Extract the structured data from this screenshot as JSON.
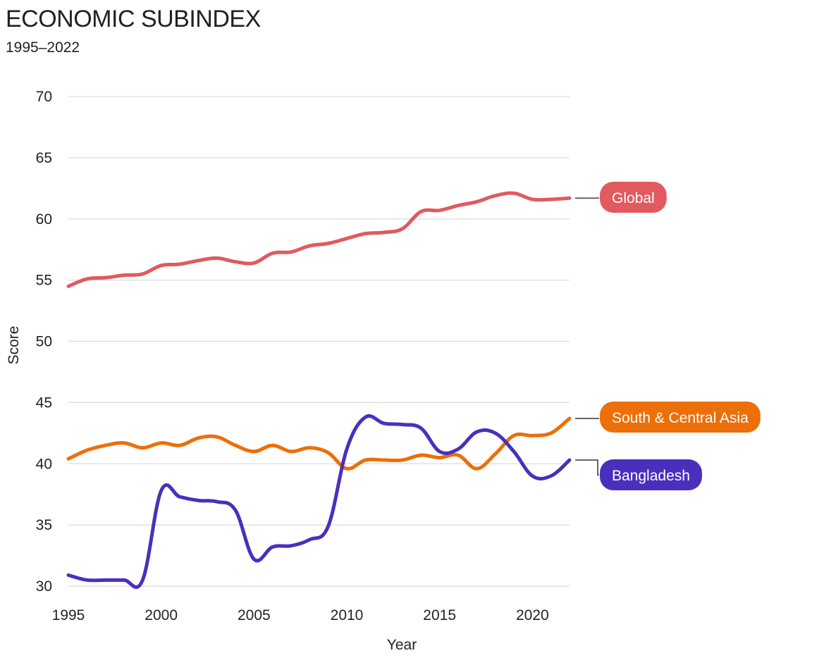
{
  "chart_data": {
    "type": "line",
    "title": "ECONOMIC SUBINDEX",
    "subtitle": "1995–2022",
    "xlabel": "Year",
    "ylabel": "Score",
    "xlim": [
      1995,
      2022
    ],
    "ylim": [
      30,
      70
    ],
    "xticks": [
      1995,
      2000,
      2005,
      2010,
      2015,
      2020
    ],
    "yticks": [
      30,
      35,
      40,
      45,
      50,
      55,
      60,
      65,
      70
    ],
    "x": [
      1995,
      1996,
      1997,
      1998,
      1999,
      2000,
      2001,
      2002,
      2003,
      2004,
      2005,
      2006,
      2007,
      2008,
      2009,
      2010,
      2011,
      2012,
      2013,
      2014,
      2015,
      2016,
      2017,
      2018,
      2019,
      2020,
      2021,
      2022
    ],
    "series": [
      {
        "name": "Global",
        "color": "#e05a5f",
        "values": [
          54.5,
          55.1,
          55.2,
          55.4,
          55.5,
          56.2,
          56.3,
          56.6,
          56.8,
          56.5,
          56.4,
          57.2,
          57.3,
          57.8,
          58.0,
          58.4,
          58.8,
          58.9,
          59.2,
          60.6,
          60.7,
          61.1,
          61.4,
          61.9,
          62.1,
          61.6,
          61.6,
          61.7
        ]
      },
      {
        "name": "South & Central Asia",
        "color": "#ec6f0a",
        "values": [
          40.4,
          41.1,
          41.5,
          41.7,
          41.3,
          41.7,
          41.5,
          42.1,
          42.2,
          41.5,
          41.0,
          41.5,
          41.0,
          41.3,
          40.9,
          39.6,
          40.3,
          40.3,
          40.3,
          40.7,
          40.5,
          40.7,
          39.6,
          40.8,
          42.3,
          42.3,
          42.5,
          43.7
        ]
      },
      {
        "name": "Bangladesh",
        "color": "#4a2fbd",
        "values": [
          30.9,
          30.5,
          30.5,
          30.5,
          30.5,
          37.8,
          37.3,
          37.0,
          36.9,
          36.2,
          32.2,
          33.2,
          33.3,
          33.8,
          34.9,
          41.2,
          43.8,
          43.3,
          43.2,
          42.9,
          41.0,
          41.2,
          42.6,
          42.5,
          41.0,
          39.0,
          39.0,
          40.3
        ]
      }
    ]
  }
}
